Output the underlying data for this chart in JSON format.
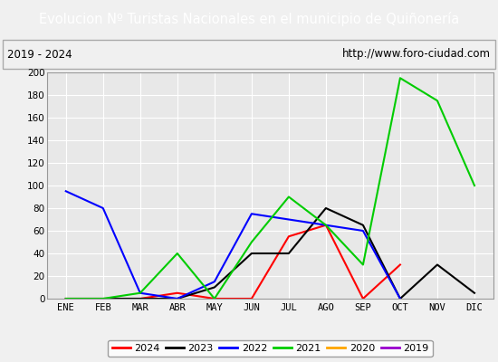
{
  "title": "Evolucion Nº Turistas Nacionales en el municipio de Quiñonería",
  "subtitle_left": "2019 - 2024",
  "subtitle_right": "http://www.foro-ciudad.com",
  "title_bg_color": "#4a86c8",
  "title_text_color": "#ffffff",
  "months": [
    "ENE",
    "FEB",
    "MAR",
    "ABR",
    "MAY",
    "JUN",
    "JUL",
    "AGO",
    "SEP",
    "OCT",
    "NOV",
    "DIC"
  ],
  "ylim": [
    0,
    200
  ],
  "yticks": [
    0,
    20,
    40,
    60,
    80,
    100,
    120,
    140,
    160,
    180,
    200
  ],
  "series": {
    "2024": {
      "color": "#ff0000",
      "data": [
        0,
        0,
        0,
        5,
        0,
        0,
        55,
        65,
        0,
        30,
        null,
        null
      ]
    },
    "2023": {
      "color": "#000000",
      "data": [
        0,
        0,
        0,
        0,
        10,
        40,
        40,
        80,
        65,
        0,
        30,
        5
      ]
    },
    "2022": {
      "color": "#0000ff",
      "data": [
        95,
        80,
        5,
        0,
        15,
        75,
        70,
        65,
        60,
        0,
        null,
        null
      ]
    },
    "2021": {
      "color": "#00cc00",
      "data": [
        0,
        0,
        5,
        40,
        0,
        50,
        90,
        65,
        30,
        195,
        175,
        100
      ]
    },
    "2020": {
      "color": "#ffa500",
      "data": [
        null,
        null,
        null,
        null,
        null,
        null,
        null,
        null,
        null,
        null,
        null,
        null
      ]
    },
    "2019": {
      "color": "#9900cc",
      "data": [
        null,
        null,
        null,
        null,
        null,
        null,
        null,
        null,
        null,
        null,
        null,
        null
      ]
    }
  },
  "legend_order": [
    "2024",
    "2023",
    "2022",
    "2021",
    "2020",
    "2019"
  ],
  "bg_color": "#f0f0f0",
  "plot_bg_color": "#e8e8e8",
  "grid_color": "#ffffff",
  "border_color": "#aaaaaa",
  "fig_width": 5.5,
  "fig_height": 4.0,
  "dpi": 100
}
